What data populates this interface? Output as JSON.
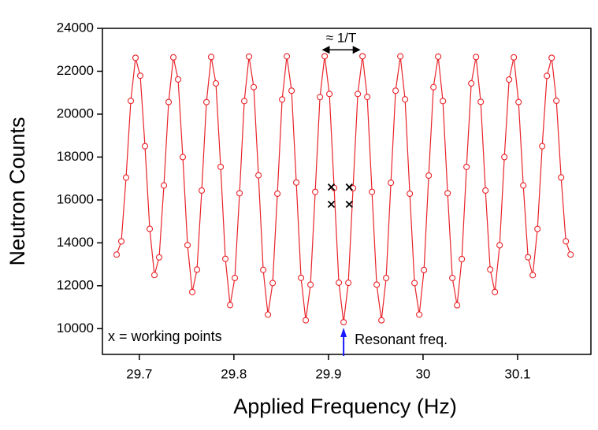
{
  "chart_data": {
    "type": "line",
    "x_label": "Applied Frequency (Hz)",
    "y_label": "Neutron Counts",
    "color": "#e8232a",
    "x": [
      29.676,
      29.681,
      29.686,
      29.691,
      29.696,
      29.701,
      29.706,
      29.711,
      29.716,
      29.721,
      29.726,
      29.731,
      29.736,
      29.741,
      29.746,
      29.751,
      29.756,
      29.761,
      29.766,
      29.771,
      29.776,
      29.781,
      29.786,
      29.791,
      29.796,
      29.801,
      29.806,
      29.811,
      29.816,
      29.821,
      29.826,
      29.831,
      29.836,
      29.841,
      29.846,
      29.851,
      29.856,
      29.861,
      29.866,
      29.871,
      29.876,
      29.881,
      29.886,
      29.891,
      29.896,
      29.901,
      29.906,
      29.911,
      29.916,
      29.921,
      29.926,
      29.931,
      29.936,
      29.941,
      29.946,
      29.951,
      29.956,
      29.961,
      29.966,
      29.971,
      29.976,
      29.981,
      29.986,
      29.991,
      29.996,
      30.001,
      30.006,
      30.011,
      30.016,
      30.021,
      30.026,
      30.031,
      30.036,
      30.041,
      30.046,
      30.051,
      30.056,
      30.061,
      30.066,
      30.071,
      30.076,
      30.081,
      30.086,
      30.091,
      30.096,
      30.101,
      30.106,
      30.111,
      30.116,
      30.121,
      30.126,
      30.131,
      30.136,
      30.141,
      30.146,
      30.151,
      30.156
    ],
    "values": [
      13454,
      14067,
      17043,
      20619,
      22626,
      21791,
      18505,
      14653,
      12499,
      13324,
      16676,
      20564,
      22647,
      21618,
      17998,
      13892,
      11708,
      12753,
      16439,
      20562,
      22666,
      21432,
      17542,
      13255,
      11097,
      12363,
      16312,
      20609,
      22682,
      21258,
      17147,
      12740,
      10654,
      12125,
      16291,
      20685,
      22694,
      21091,
      16812,
      12369,
      10392,
      12050,
      16376,
      20796,
      22700,
      20941,
      16559,
      12143,
      10300,
      12137,
      16546,
      20941,
      22700,
      20802,
      16376,
      12050,
      10389,
      12362,
      16800,
      21091,
      22694,
      20691,
      16291,
      12125,
      10654,
      12734,
      17135,
      21258,
      22682,
      20609,
      16312,
      12363,
      11091,
      13243,
      17542,
      21432,
      22666,
      20574,
      16439,
      12759,
      11708,
      13887,
      17998,
      21612,
      22647,
      20564,
      16676,
      13329,
      12494,
      14648,
      18505,
      21786,
      22626,
      20624,
      17048,
      14071,
      13454
    ],
    "xlim": [
      29.661,
      30.1775
    ],
    "xticks": [
      29.7,
      29.8,
      29.9,
      30.0,
      30.1
    ],
    "ylim": [
      8800,
      24000
    ],
    "yticks": [
      10000,
      12000,
      14000,
      16000,
      18000,
      20000,
      22000,
      24000
    ],
    "working_points": {
      "label": "x = working points",
      "x": [
        29.903,
        29.903,
        29.922,
        29.922
      ],
      "y": [
        16600,
        15800,
        16600,
        15800
      ]
    },
    "resonance": {
      "label": "Resonant freq.",
      "x": 29.916
    },
    "period": {
      "label": "≈ 1/T",
      "x": [
        29.893,
        29.934
      ],
      "y": 23000
    }
  }
}
